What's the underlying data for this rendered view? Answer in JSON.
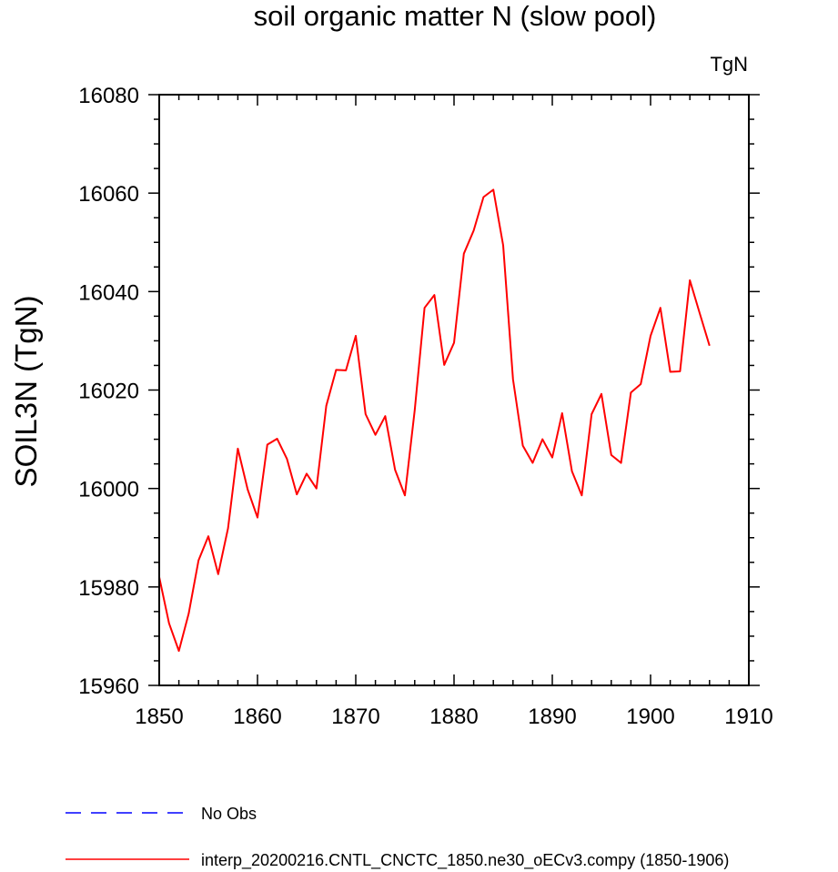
{
  "chart_data": {
    "type": "line",
    "title": "soil organic matter N (slow pool)",
    "units_label": "TgN",
    "ylabel": "SOIL3N  (TgN)",
    "xlabel": "",
    "xlim": [
      1850,
      1910
    ],
    "ylim": [
      15960,
      16080
    ],
    "xticks": [
      1850,
      1860,
      1870,
      1880,
      1890,
      1900,
      1910
    ],
    "yticks": [
      15960,
      15980,
      16000,
      16020,
      16040,
      16060,
      16080
    ],
    "x_minor_step": 2,
    "y_minor_step": 5,
    "grid": false,
    "series": [
      {
        "name": "interp_20200216.CNTL_CNCTC_1850.ne30_oECv3.compy (1850-1906)",
        "color": "#ff0000",
        "style": "solid",
        "x": [
          1850,
          1851,
          1852,
          1853,
          1854,
          1855,
          1856,
          1857,
          1858,
          1859,
          1860,
          1861,
          1862,
          1863,
          1864,
          1865,
          1866,
          1867,
          1868,
          1869,
          1870,
          1871,
          1872,
          1873,
          1874,
          1875,
          1876,
          1877,
          1878,
          1879,
          1880,
          1881,
          1882,
          1883,
          1884,
          1885,
          1886,
          1887,
          1888,
          1889,
          1890,
          1891,
          1892,
          1893,
          1894,
          1895,
          1896,
          1897,
          1898,
          1899,
          1900,
          1901,
          1902,
          1903,
          1904,
          1905,
          1906
        ],
        "values": [
          15982,
          15972.6,
          15967,
          15974.6,
          15985.4,
          15990.3,
          15982.6,
          15991.9,
          16008.1,
          15999.8,
          15994.1,
          16008.9,
          16010.1,
          16006,
          15998.8,
          16003,
          16000,
          16016.8,
          16024.1,
          16024,
          16031,
          16015.1,
          16010.9,
          16014.7,
          16003.8,
          15998.6,
          16015.9,
          16036.7,
          16039.3,
          16025.1,
          16029.6,
          16047.7,
          16052.4,
          16059.2,
          16060.7,
          16049.4,
          16022.2,
          16008.7,
          16005.2,
          16010,
          16006.3,
          16015.3,
          16003.5,
          15998.6,
          16015.1,
          16019.2,
          16006.8,
          16005.2,
          16019.5,
          16021.2,
          16031,
          16036.7,
          16023.7,
          16023.8,
          16042.3,
          16035.6,
          16029
        ]
      }
    ],
    "legend": [
      {
        "label": "No Obs",
        "color": "#0000ff",
        "style": "dashed"
      },
      {
        "label": "interp_20200216.CNTL_CNCTC_1850.ne30_oECv3.compy (1850-1906)",
        "color": "#ff0000",
        "style": "solid"
      }
    ]
  }
}
